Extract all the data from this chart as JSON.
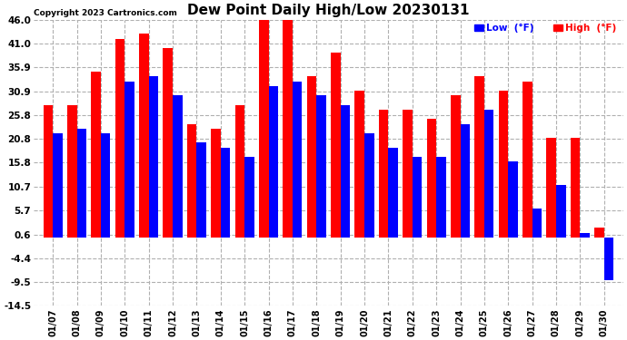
{
  "title": "Dew Point Daily High/Low 20230131",
  "copyright": "Copyright 2023 Cartronics.com",
  "dates": [
    "01/07",
    "01/08",
    "01/09",
    "01/10",
    "01/11",
    "01/12",
    "01/13",
    "01/14",
    "01/15",
    "01/16",
    "01/17",
    "01/18",
    "01/19",
    "01/20",
    "01/21",
    "01/22",
    "01/23",
    "01/24",
    "01/25",
    "01/26",
    "01/27",
    "01/28",
    "01/29",
    "01/30"
  ],
  "high": [
    28,
    28,
    35,
    42,
    43,
    40,
    24,
    23,
    28,
    46,
    46,
    34,
    39,
    31,
    27,
    27,
    25,
    30,
    34,
    31,
    33,
    21,
    21,
    2
  ],
  "low": [
    22,
    23,
    22,
    33,
    34,
    30,
    20,
    19,
    17,
    32,
    33,
    30,
    28,
    22,
    19,
    17,
    17,
    24,
    27,
    16,
    6,
    11,
    1,
    -9
  ],
  "ylim": [
    -14.5,
    46.0
  ],
  "yticks": [
    -14.5,
    -9.5,
    -4.4,
    0.6,
    5.7,
    10.7,
    15.8,
    20.8,
    25.8,
    30.9,
    35.9,
    41.0,
    46.0
  ],
  "bar_width": 0.4,
  "high_color": "#ff0000",
  "low_color": "#0000ff",
  "bg_color": "#ffffff",
  "grid_color": "#b0b0b0",
  "title_fontsize": 11,
  "legend_low_label": "Low  (°F)",
  "legend_high_label": "High  (°F)"
}
